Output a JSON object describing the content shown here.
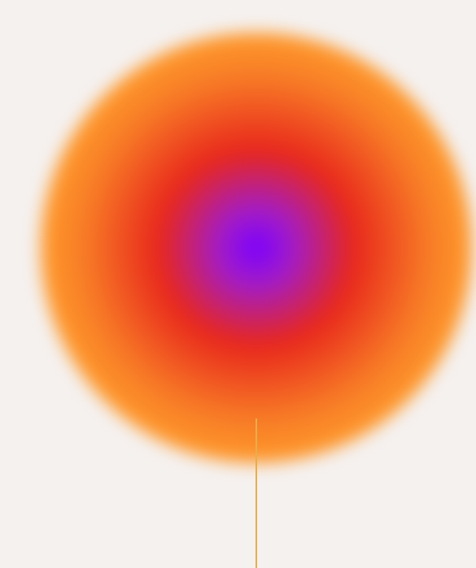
{
  "colors": {
    "background": "#f5f1ef",
    "core": "#7a00ff",
    "inner": "#a21cc8",
    "middle": "#e8281c",
    "outer": "#f77a26",
    "rim": "#ff9e2c",
    "stem": "#e7ae4a"
  }
}
